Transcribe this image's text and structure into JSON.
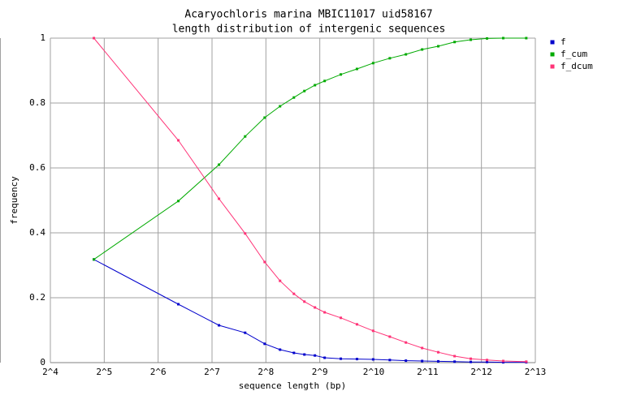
{
  "chart_data": {
    "type": "line",
    "title": "Acaryochloris marina MBIC11017 uid58167",
    "subtitle": "length distribution of intergenic sequences",
    "xlabel": "sequence length (bp)",
    "ylabel": "frequency",
    "xscale": "log",
    "logbase": 2,
    "x": [
      28,
      83,
      140,
      196,
      252,
      307,
      367,
      420,
      481,
      545,
      671,
      826,
      1017,
      1260,
      1550,
      1910,
      2350,
      2900,
      3570,
      4400,
      5420,
      7290
    ],
    "series": [
      {
        "name": "f",
        "color": "#0000cc",
        "values": [
          0.318,
          0.18,
          0.115,
          0.092,
          0.058,
          0.04,
          0.03,
          0.025,
          0.022,
          0.015,
          0.012,
          0.011,
          0.01,
          0.008,
          0.006,
          0.005,
          0.004,
          0.003,
          0.002,
          0.002,
          0.001,
          0.001
        ]
      },
      {
        "name": "f_cum",
        "color": "#00aa00",
        "values": [
          0.318,
          0.498,
          0.61,
          0.697,
          0.755,
          0.79,
          0.817,
          0.837,
          0.855,
          0.868,
          0.888,
          0.905,
          0.923,
          0.938,
          0.95,
          0.965,
          0.975,
          0.988,
          0.995,
          0.999,
          1,
          1
        ]
      },
      {
        "name": "f_dcum",
        "color": "#ff3377",
        "values": [
          1,
          0.685,
          0.505,
          0.398,
          0.31,
          0.252,
          0.212,
          0.188,
          0.17,
          0.155,
          0.138,
          0.118,
          0.098,
          0.08,
          0.062,
          0.045,
          0.032,
          0.02,
          0.012,
          0.008,
          0.005,
          0.003
        ]
      }
    ],
    "xlim": [
      16,
      8192
    ],
    "xticks": [
      {
        "value": 16,
        "label": "2^4"
      },
      {
        "value": 32,
        "label": "2^5"
      },
      {
        "value": 64,
        "label": "2^6"
      },
      {
        "value": 128,
        "label": "2^7"
      },
      {
        "value": 256,
        "label": "2^8"
      },
      {
        "value": 512,
        "label": "2^9"
      },
      {
        "value": 1024,
        "label": "2^10"
      },
      {
        "value": 2048,
        "label": "2^11"
      },
      {
        "value": 4096,
        "label": "2^12"
      },
      {
        "value": 8192,
        "label": "2^13"
      }
    ],
    "ylim": [
      0,
      1
    ],
    "yticks": [
      0,
      0.2,
      0.4,
      0.6,
      0.8,
      1
    ],
    "grid": true,
    "legend": "top-right"
  }
}
